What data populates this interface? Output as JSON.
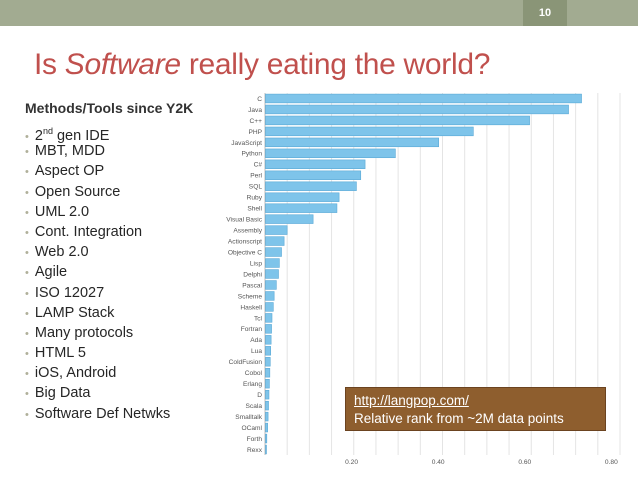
{
  "header": {
    "slide_number": "10"
  },
  "title": {
    "prefix": "Is ",
    "emphasis": "Software",
    "suffix": " really eating the world?"
  },
  "subheading": "Methods/Tools since Y2K",
  "bullets": [
    "2nd gen IDE",
    "MBT, MDD",
    "Aspect OP",
    "Open Source",
    "UML 2.0",
    "Cont. Integration",
    "Web 2.0",
    "Agile",
    "ISO 12027",
    "LAMP Stack",
    "Many protocols",
    "HTML 5",
    "iOS, Android",
    "Big Data",
    "Software Def Netwks"
  ],
  "note": {
    "link": "http://langpop.com/",
    "caption": "Relative rank from ~2M data points"
  },
  "colors": {
    "title": "#c0504d",
    "bar": "#7ec4ea",
    "topbar": "#a2ab91",
    "note_bg": "#8e5e2e"
  },
  "chart_data": {
    "type": "bar",
    "orientation": "horizontal",
    "categories": [
      "C",
      "Java",
      "C++",
      "PHP",
      "JavaScript",
      "Python",
      "C#",
      "Perl",
      "SQL",
      "Ruby",
      "Shell",
      "Visual Basic",
      "Assembly",
      "Actionscript",
      "Objective C",
      "Lisp",
      "Delphi",
      "Pascal",
      "Scheme",
      "Haskell",
      "Tcl",
      "Fortran",
      "Ada",
      "Lua",
      "ColdFusion",
      "Cobol",
      "Erlang",
      "D",
      "Scala",
      "Smalltalk",
      "OCaml",
      "Forth",
      "Rexx"
    ],
    "values": [
      0.73,
      0.7,
      0.61,
      0.48,
      0.4,
      0.3,
      0.23,
      0.22,
      0.21,
      0.17,
      0.165,
      0.11,
      0.05,
      0.043,
      0.037,
      0.032,
      0.03,
      0.025,
      0.02,
      0.018,
      0.015,
      0.014,
      0.013,
      0.012,
      0.011,
      0.01,
      0.009,
      0.008,
      0.007,
      0.006,
      0.005,
      0.003,
      0.002
    ],
    "x_ticks": [
      "0.20",
      "0.40",
      "0.60",
      "0.80"
    ],
    "xlim": [
      0,
      0.82
    ]
  }
}
